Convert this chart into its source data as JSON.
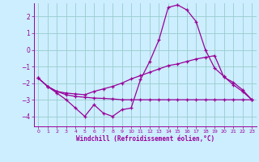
{
  "xlabel": "Windchill (Refroidissement éolien,°C)",
  "background_color": "#cceeff",
  "grid_color": "#99cccc",
  "line_color": "#990099",
  "xlim": [
    -0.5,
    23.5
  ],
  "ylim": [
    -4.6,
    2.8
  ],
  "yticks": [
    -4,
    -3,
    -2,
    -1,
    0,
    1,
    2
  ],
  "xticks": [
    0,
    1,
    2,
    3,
    4,
    5,
    6,
    7,
    8,
    9,
    10,
    11,
    12,
    13,
    14,
    15,
    16,
    17,
    18,
    19,
    20,
    21,
    22,
    23
  ],
  "line1_x": [
    0,
    1,
    2,
    3,
    4,
    5,
    6,
    7,
    8,
    9,
    10,
    11,
    12,
    13,
    14,
    15,
    16,
    17,
    18,
    19,
    20,
    21,
    22,
    23
  ],
  "line1_y": [
    -1.7,
    -2.2,
    -2.6,
    -3.0,
    -3.5,
    -4.0,
    -3.3,
    -3.8,
    -4.0,
    -3.6,
    -3.5,
    -1.8,
    -0.7,
    0.6,
    2.55,
    2.7,
    2.4,
    1.7,
    0.0,
    -1.1,
    -1.6,
    -2.1,
    -2.5,
    -3.0
  ],
  "line2_x": [
    0,
    1,
    2,
    3,
    4,
    5,
    6,
    7,
    8,
    9,
    10,
    11,
    12,
    13,
    14,
    15,
    16,
    17,
    18,
    19,
    20,
    21,
    22,
    23
  ],
  "line2_y": [
    -1.7,
    -2.2,
    -2.5,
    -2.7,
    -2.8,
    -2.85,
    -2.9,
    -2.92,
    -2.95,
    -3.0,
    -3.0,
    -3.0,
    -3.0,
    -3.0,
    -3.0,
    -3.0,
    -3.0,
    -3.0,
    -3.0,
    -3.0,
    -3.0,
    -3.0,
    -3.0,
    -3.0
  ],
  "line3_x": [
    0,
    1,
    2,
    3,
    4,
    5,
    6,
    7,
    8,
    9,
    10,
    11,
    12,
    13,
    14,
    15,
    16,
    17,
    18,
    19,
    20,
    21,
    22,
    23
  ],
  "line3_y": [
    -1.7,
    -2.2,
    -2.5,
    -2.6,
    -2.65,
    -2.7,
    -2.5,
    -2.35,
    -2.2,
    -2.0,
    -1.75,
    -1.55,
    -1.35,
    -1.15,
    -0.95,
    -0.85,
    -0.7,
    -0.55,
    -0.45,
    -0.35,
    -1.65,
    -1.95,
    -2.4,
    -3.0
  ]
}
